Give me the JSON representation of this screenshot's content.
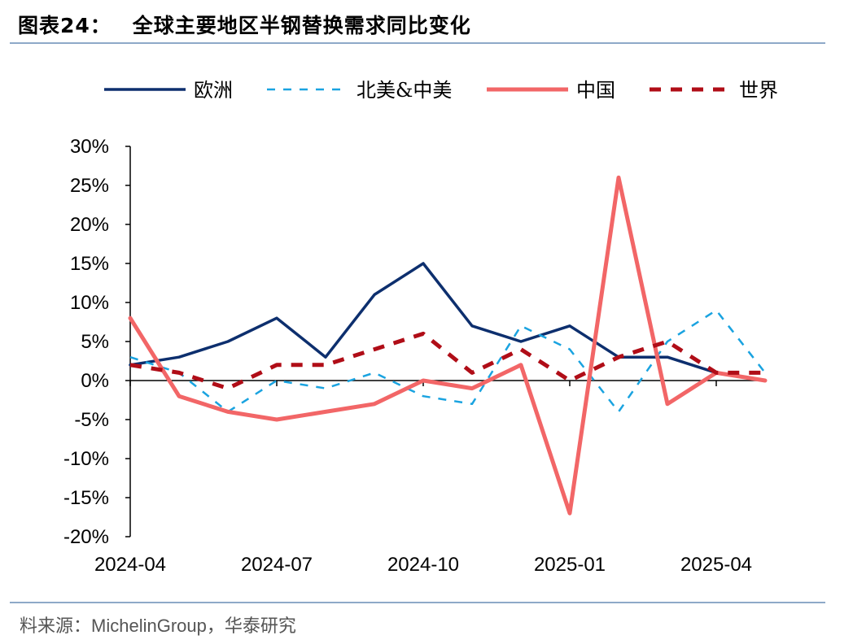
{
  "header": {
    "figure_number": "图表24：",
    "title": "全球主要地区半钢替换需求同比变化"
  },
  "footer": {
    "source_prefix": "料来源：",
    "source_org": "MichelinGroup",
    "source_suffix": "，华泰研究"
  },
  "chart_data": {
    "type": "line",
    "title": "全球主要地区半钢替换需求同比变化",
    "xlabel": "",
    "ylabel": "",
    "x": [
      "2024-04",
      "2024-05",
      "2024-06",
      "2024-07",
      "2024-08",
      "2024-09",
      "2024-10",
      "2024-11",
      "2024-12",
      "2025-01",
      "2025-02",
      "2025-03",
      "2025-04",
      "2025-05"
    ],
    "x_tick_labels": [
      "2024-04",
      "2024-07",
      "2024-10",
      "2025-01",
      "2025-04"
    ],
    "ylim": [
      -20,
      30
    ],
    "y_ticks": [
      -20,
      -15,
      -10,
      -5,
      0,
      5,
      10,
      15,
      20,
      25,
      30
    ],
    "y_tick_format": "percent",
    "grid": false,
    "legend_position": "top",
    "series": [
      {
        "name": "欧洲",
        "color": "#0d2f6e",
        "style": "solid",
        "values": [
          2,
          3,
          5,
          8,
          3,
          11,
          15,
          7,
          5,
          7,
          3,
          3,
          1,
          0
        ]
      },
      {
        "name": "北美&中美",
        "color": "#1aa3e0",
        "style": "dashed",
        "values": [
          3,
          1,
          -4,
          0,
          -1,
          1,
          -2,
          -3,
          7,
          4,
          -4,
          5,
          9,
          1
        ]
      },
      {
        "name": "中国",
        "color": "#f26667",
        "style": "solid",
        "values": [
          8,
          -2,
          -4,
          -5,
          -4,
          -3,
          0,
          -1,
          2,
          -17,
          26,
          -3,
          1,
          0
        ]
      },
      {
        "name": "世界",
        "color": "#b00d17",
        "style": "dashed",
        "values": [
          2,
          1,
          -1,
          2,
          2,
          4,
          6,
          1,
          4,
          0,
          3,
          5,
          1,
          1
        ]
      }
    ]
  }
}
